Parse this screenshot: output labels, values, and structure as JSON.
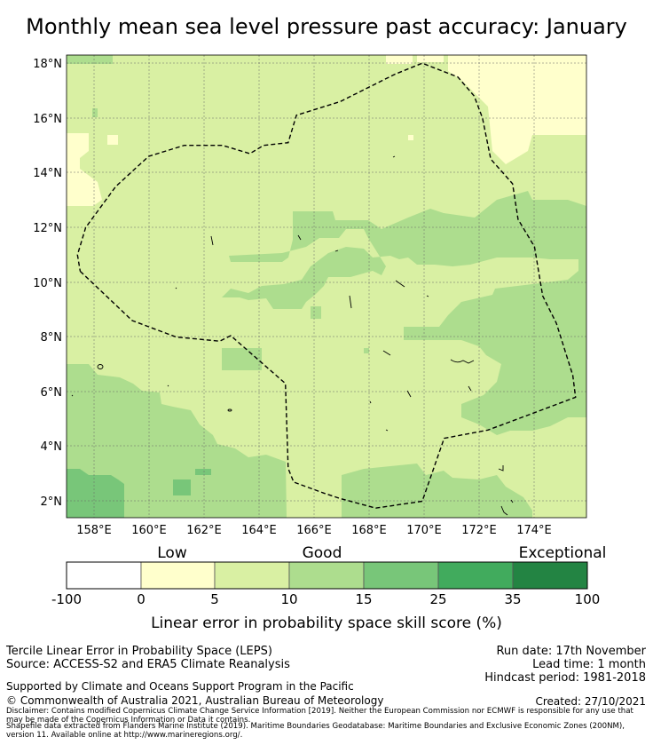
{
  "title": "Monthly mean sea level pressure past accuracy: January",
  "map": {
    "lat_ticks": [
      "18°N",
      "16°N",
      "14°N",
      "12°N",
      "10°N",
      "8°N",
      "6°N",
      "4°N",
      "2°N"
    ],
    "lon_ticks": [
      "158°E",
      "160°E",
      "162°E",
      "164°E",
      "166°E",
      "168°E",
      "170°E",
      "172°E",
      "174°E"
    ],
    "lat_values": [
      18,
      16,
      14,
      12,
      10,
      8,
      6,
      4,
      2
    ],
    "lon_values": [
      158,
      160,
      162,
      164,
      166,
      168,
      170,
      172,
      174
    ],
    "extent": {
      "lon_min": 157.0,
      "lon_max": 176.0,
      "lat_min": 1.4,
      "lat_max": 18.3
    },
    "eez_boundary": [
      [
        157.5,
        10.4
      ],
      [
        159.4,
        8.6
      ],
      [
        161.0,
        8.0
      ],
      [
        162.6,
        7.85
      ],
      [
        163.0,
        8.05
      ],
      [
        165.0,
        6.3
      ],
      [
        165.1,
        3.2
      ],
      [
        165.3,
        2.7
      ],
      [
        166.4,
        2.3
      ],
      [
        167.0,
        2.1
      ],
      [
        168.3,
        1.75
      ],
      [
        170.0,
        2.0
      ],
      [
        170.8,
        4.3
      ],
      [
        172.4,
        4.6
      ],
      [
        174.0,
        5.2
      ],
      [
        175.6,
        5.8
      ],
      [
        175.5,
        6.6
      ],
      [
        174.9,
        8.5
      ],
      [
        174.4,
        9.5
      ],
      [
        174.1,
        11.3
      ],
      [
        173.5,
        12.3
      ],
      [
        173.3,
        13.6
      ],
      [
        172.5,
        14.5
      ],
      [
        172.4,
        15.0
      ],
      [
        172.2,
        16.0
      ],
      [
        171.9,
        16.8
      ],
      [
        171.3,
        17.5
      ],
      [
        170.0,
        18.0
      ],
      [
        169.0,
        17.6
      ],
      [
        167.0,
        16.6
      ],
      [
        165.4,
        16.1
      ],
      [
        165.1,
        15.1
      ],
      [
        164.2,
        15.0
      ],
      [
        163.7,
        14.7
      ],
      [
        162.7,
        15.0
      ],
      [
        161.3,
        15.0
      ],
      [
        160.0,
        14.6
      ],
      [
        158.8,
        13.5
      ],
      [
        157.7,
        12.0
      ],
      [
        157.4,
        11.0
      ],
      [
        157.5,
        10.4
      ]
    ]
  },
  "colorbar": {
    "categories": [
      "Low",
      "Good",
      "Exceptional"
    ],
    "ticks": [
      "-100",
      "0",
      "5",
      "10",
      "15",
      "25",
      "35",
      "100"
    ],
    "colors": [
      "#ffffff",
      "#ffffcc",
      "#d9f0a3",
      "#addd8e",
      "#78c679",
      "#41ab5d",
      "#238443"
    ],
    "label": "Linear error in probability space skill score (%)"
  },
  "info": {
    "product": "Tercile Linear Error in Probability Space (LEPS)",
    "source": "Source: ACCESS-S2 and ERA5 Climate Reanalysis",
    "run_date": "Run date: 17th November",
    "lead_time": "Lead time: 1 month",
    "hindcast": "Hindcast period: 1981-2018",
    "support": "Supported by Climate and Oceans Support Program in the Pacific",
    "copyright": "© Commonwealth of Australia 2021, Australian Bureau of Meteorology",
    "created": "Created: 27/10/2021",
    "disclaimer": "Disclaimer: Contains modified Copernicus Climate Change Service Information [2019]. Neither the European Commission nor ECMWF is responsible for any use that may be made of the Copernicus Information or Data it contains.",
    "shapefile": "Shapefile data extracted from Flanders Marine Institute (2019). Maritime Boundaries Geodatabase: Maritime Boundaries and Exclusive Economic Zones (200NM), version 11. Available online at http://www.marineregions.org/."
  }
}
